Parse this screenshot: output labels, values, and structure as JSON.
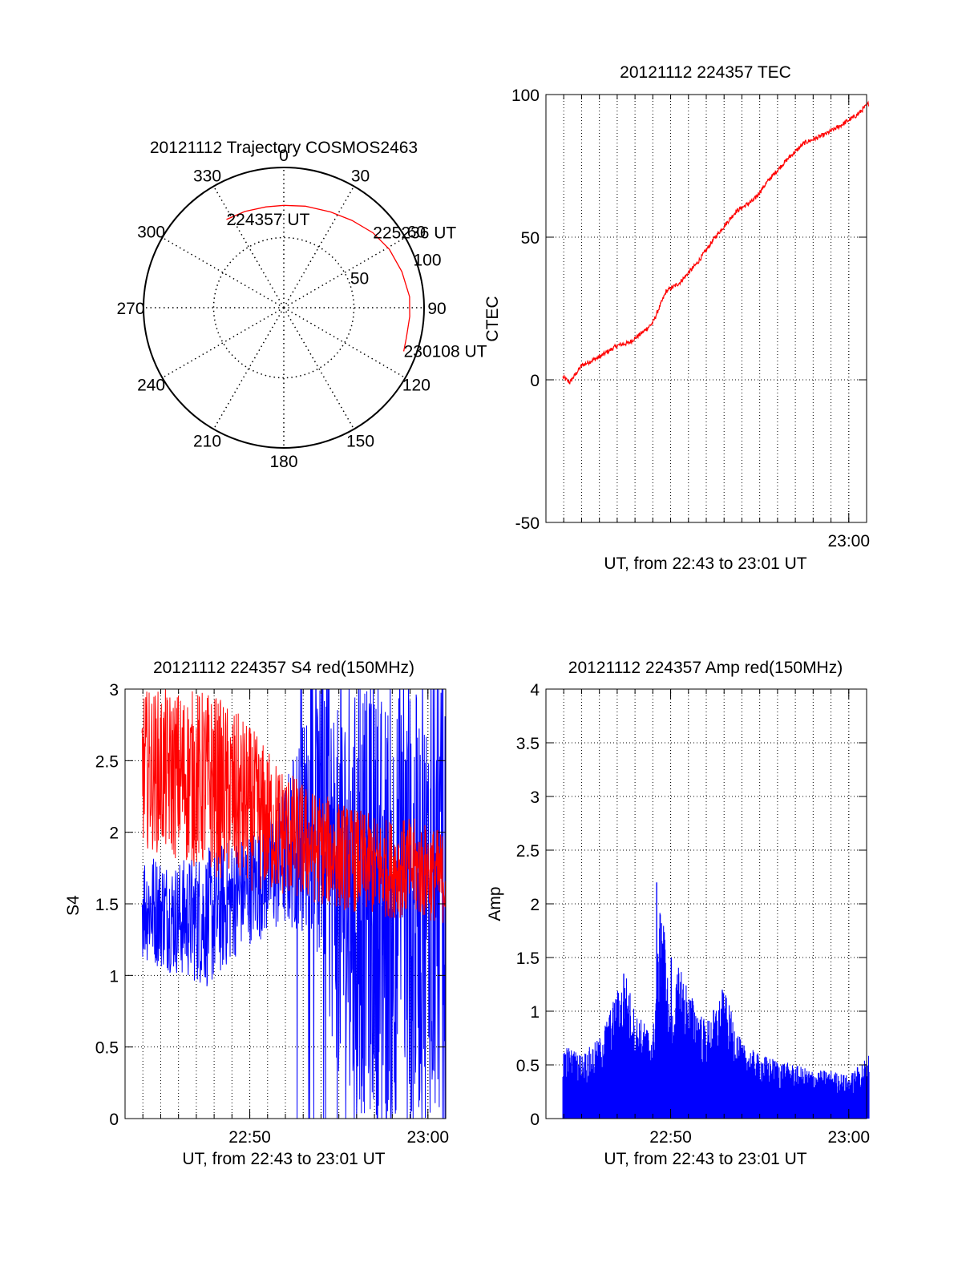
{
  "colors": {
    "red": "#ff0000",
    "blue": "#0000ff",
    "axis": "#000000",
    "grid": "#000000",
    "background": "#ffffff"
  },
  "chart_data": [
    {
      "id": "trajectory",
      "type": "polar",
      "title": "20121112 Trajectory COSMOS2463",
      "azimuth_ticks": [
        "0",
        "30",
        "60",
        "90",
        "120",
        "150",
        "180",
        "210",
        "240",
        "270",
        "300",
        "330"
      ],
      "azimuth_degrees": [
        0,
        30,
        60,
        90,
        120,
        150,
        180,
        210,
        240,
        270,
        300,
        330
      ],
      "radial_ticks": [
        "50",
        "100"
      ],
      "radial_values": [
        50,
        100
      ],
      "radial_max": 100,
      "grid": true,
      "series": [
        {
          "color": "red",
          "azimuth": [
            327,
            338,
            350,
            0,
            12,
            26,
            38,
            50,
            61,
            73,
            85,
            94,
            104,
            110
          ],
          "zenith": [
            75,
            74,
            73,
            73,
            74,
            76,
            79,
            83,
            86,
            88,
            90,
            90,
            90,
            91
          ]
        }
      ],
      "annotations": [
        {
          "text": "224357 UT",
          "azimuth": 327,
          "zenith": 75
        },
        {
          "text": "225236 UT",
          "azimuth": 50,
          "zenith": 83
        },
        {
          "text": "230108 UT",
          "azimuth": 110,
          "zenith": 91
        }
      ]
    },
    {
      "id": "tec",
      "type": "line",
      "title": "20121112 224357 TEC",
      "xlabel": "UT, from 22:43 to 23:01 UT",
      "ylabel": "CTEC",
      "xlim": [
        "22:43:00",
        "23:01:00"
      ],
      "ylim": [
        -50,
        100
      ],
      "yticks": [
        "-50",
        "0",
        "50",
        "100"
      ],
      "xticks": [
        "23:00"
      ],
      "grid": true,
      "series": [
        {
          "color": "red",
          "x_start": "22:43:57",
          "x_end": "23:01:08",
          "x": [
            "22:43:57",
            "22:44:20",
            "22:45:00",
            "22:46:00",
            "22:47:00",
            "22:47:40",
            "22:48:30",
            "22:49:00",
            "22:49:45",
            "22:50:30",
            "22:51:30",
            "22:52:30",
            "22:53:40",
            "22:54:40",
            "22:55:30",
            "22:56:30",
            "22:57:30",
            "22:58:40",
            "22:59:30",
            "23:00:30",
            "23:01:08"
          ],
          "y": [
            1,
            -1,
            5,
            8,
            12,
            13,
            17,
            20,
            31,
            34,
            41,
            50,
            59,
            63,
            70,
            77,
            83,
            86,
            89,
            93,
            97
          ]
        }
      ]
    },
    {
      "id": "s4",
      "type": "line",
      "title": "20121112 224357 S4 red(150MHz)",
      "xlabel": "UT, from 22:43 to 23:01 UT",
      "ylabel": "S4",
      "xlim": [
        "22:43:00",
        "23:01:00"
      ],
      "ylim": [
        0,
        3
      ],
      "yticks": [
        "0",
        "0.5",
        "1",
        "1.5",
        "2",
        "2.5",
        "3"
      ],
      "xticks": [
        "22:50",
        "23:00"
      ],
      "grid": true,
      "series": [
        {
          "color": "red",
          "x_start": "22:43:57",
          "x_end": "23:01:08",
          "envelope_low": [
            1.9,
            1.8,
            1.7,
            1.6,
            1.55,
            1.5,
            1.45,
            1.4,
            1.4,
            1.35
          ],
          "envelope_high": [
            3.0,
            3.0,
            3.0,
            2.8,
            2.5,
            2.3,
            2.2,
            2.1,
            2.1,
            2.0
          ]
        },
        {
          "color": "blue",
          "x_start": "22:43:57",
          "x_end": "23:01:08",
          "envelope_low": [
            1.1,
            1.0,
            0.9,
            1.2,
            1.3,
            1.3,
            0.0,
            0.0,
            0.0,
            0.0
          ],
          "envelope_high": [
            1.9,
            1.8,
            1.9,
            2.0,
            2.2,
            3.0,
            3.0,
            3.0,
            3.0,
            3.0
          ]
        }
      ]
    },
    {
      "id": "amp",
      "type": "area",
      "title": "20121112 224357 Amp red(150MHz)",
      "xlabel": "UT, from 22:43 to 23:01 UT",
      "ylabel": "Amp",
      "xlim": [
        "22:43:00",
        "23:01:00"
      ],
      "ylim": [
        0,
        4
      ],
      "yticks": [
        "0",
        "0.5",
        "1",
        "1.5",
        "2",
        "2.5",
        "3",
        "3.5",
        "4"
      ],
      "xticks": [
        "22:50",
        "23:00"
      ],
      "grid": true,
      "series": [
        {
          "color": "blue",
          "x_start": "22:43:57",
          "x_end": "23:01:08",
          "envelope_x": [
            "22:43:57",
            "22:45:00",
            "22:46:00",
            "22:47:00",
            "22:47:30",
            "22:48:00",
            "22:49:00",
            "22:49:30",
            "22:50:00",
            "22:50:30",
            "22:51:00",
            "22:52:00",
            "22:53:00",
            "22:54:00",
            "22:55:00",
            "22:56:00",
            "22:57:00",
            "22:58:00",
            "22:59:00",
            "23:00:00",
            "23:01:08"
          ],
          "envelope_y": [
            0.7,
            0.6,
            0.75,
            1.2,
            1.35,
            1.0,
            0.8,
            2.2,
            0.9,
            1.5,
            1.2,
            0.9,
            1.2,
            0.7,
            0.6,
            0.55,
            0.5,
            0.45,
            0.45,
            0.4,
            0.6
          ],
          "spikes": [
            {
              "x": "22:49:13",
              "y": 2.2
            },
            {
              "x": "22:49:25",
              "y": 1.9
            },
            {
              "x": "22:50:02",
              "y": 1.5
            },
            {
              "x": "22:47:22",
              "y": 1.35
            },
            {
              "x": "22:52:54",
              "y": 1.2
            }
          ]
        }
      ]
    }
  ]
}
